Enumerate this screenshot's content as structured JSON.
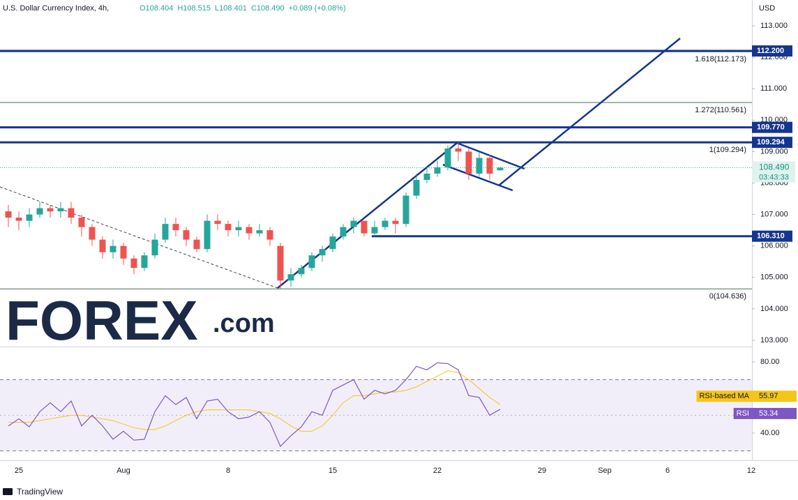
{
  "chart_data": {
    "type": "candlestick",
    "title": "U.S. Dollar Currency Index, 4h,",
    "ohlc_header": [
      "O108.404",
      "H108.515",
      "L108.401",
      "C108.490",
      "+0.089 (+0.08%)"
    ],
    "currency": "USD",
    "categories": [
      null,
      "25",
      null,
      null,
      null,
      null,
      null,
      null,
      null,
      null,
      null,
      "Aug",
      null,
      null,
      null,
      null,
      null,
      null,
      null,
      null,
      null,
      "8",
      null,
      null,
      null,
      null,
      null,
      null,
      null,
      null,
      null,
      "15",
      null,
      null,
      null,
      null,
      null,
      null,
      null,
      null,
      null,
      "22",
      null,
      null,
      null,
      null,
      null,
      null,
      null,
      null,
      null,
      "29",
      null,
      null,
      null,
      null,
      null,
      "Sep",
      null,
      null,
      null,
      null,
      null,
      "6",
      null,
      null,
      null,
      null,
      null,
      null,
      null,
      "12"
    ],
    "open": [
      107.1,
      106.9,
      106.8,
      107.0,
      107.2,
      107.1,
      107.2,
      106.9,
      106.6,
      106.2,
      105.8,
      106.0,
      105.6,
      105.3,
      105.7,
      106.2,
      106.7,
      106.5,
      106.2,
      105.9,
      106.8,
      106.7,
      106.5,
      106.6,
      106.4,
      106.5,
      106.0,
      104.9,
      105.1,
      105.3,
      105.7,
      105.9,
      106.3,
      106.6,
      106.8,
      106.4,
      106.6,
      106.8,
      106.7,
      107.6,
      108.1,
      108.3,
      108.5,
      109.1,
      109.0,
      108.3,
      108.8,
      108.404,
      null,
      null,
      null,
      null,
      null,
      null,
      null,
      null,
      null,
      null,
      null,
      null,
      null,
      null,
      null,
      null,
      null,
      null,
      null,
      null,
      null,
      null,
      null,
      null
    ],
    "high": [
      107.3,
      107.1,
      107.2,
      107.4,
      107.3,
      107.4,
      107.4,
      107.0,
      106.7,
      106.3,
      106.2,
      106.1,
      105.7,
      105.8,
      106.4,
      106.9,
      106.9,
      106.6,
      106.3,
      107.0,
      107.0,
      106.8,
      106.8,
      106.7,
      106.7,
      106.6,
      106.1,
      105.3,
      105.4,
      105.8,
      106.0,
      106.4,
      106.7,
      106.9,
      106.8,
      106.8,
      106.9,
      106.9,
      107.7,
      108.3,
      108.5,
      108.7,
      109.2,
      109.3,
      109.1,
      109.0,
      108.9,
      108.515,
      null,
      null,
      null,
      null,
      null,
      null,
      null,
      null,
      null,
      null,
      null,
      null,
      null,
      null,
      null,
      null,
      null,
      null,
      null,
      null,
      null,
      null,
      null,
      null
    ],
    "low": [
      106.6,
      106.5,
      106.6,
      106.9,
      106.9,
      106.9,
      106.7,
      106.3,
      106.0,
      105.6,
      105.6,
      105.4,
      105.1,
      105.2,
      105.6,
      106.1,
      106.3,
      106.0,
      105.8,
      105.8,
      106.5,
      106.3,
      106.3,
      106.2,
      106.3,
      106.0,
      104.65,
      104.7,
      105.0,
      105.2,
      105.5,
      105.8,
      106.2,
      106.4,
      106.3,
      106.3,
      106.5,
      106.4,
      106.6,
      107.5,
      108.0,
      108.2,
      108.4,
      108.7,
      108.1,
      108.2,
      108.1,
      108.401,
      null,
      null,
      null,
      null,
      null,
      null,
      null,
      null,
      null,
      null,
      null,
      null,
      null,
      null,
      null,
      null,
      null,
      null,
      null,
      null,
      null,
      null,
      null,
      null
    ],
    "close": [
      106.9,
      106.8,
      107.0,
      107.2,
      107.1,
      107.2,
      106.9,
      106.6,
      106.2,
      105.8,
      106.0,
      105.6,
      105.3,
      105.7,
      106.2,
      106.7,
      106.5,
      106.2,
      105.9,
      106.8,
      106.7,
      106.5,
      106.6,
      106.4,
      106.5,
      106.2,
      104.9,
      105.1,
      105.3,
      105.7,
      105.9,
      106.3,
      106.6,
      106.8,
      106.4,
      106.6,
      106.8,
      106.7,
      107.6,
      108.1,
      108.3,
      108.5,
      109.1,
      109.0,
      108.3,
      108.8,
      108.3,
      108.49,
      null,
      null,
      null,
      null,
      null,
      null,
      null,
      null,
      null,
      null,
      null,
      null,
      null,
      null,
      null,
      null,
      null,
      null,
      null,
      null,
      null,
      null,
      null,
      null
    ],
    "up_color": "#26a69a",
    "down_color": "#ef5350",
    "ylim": [
      102.8,
      113.82
    ],
    "yticks": [
      {
        "value": 113,
        "label": "113.000"
      },
      {
        "value": 112,
        "label": "112.000"
      },
      {
        "value": 111,
        "label": "111.000"
      },
      {
        "value": 110,
        "label": "110.000"
      },
      {
        "value": 109,
        "label": "109.000"
      },
      {
        "value": 108,
        "label": "108.000"
      },
      {
        "value": 107,
        "label": "107.000"
      },
      {
        "value": 106,
        "label": "106.000"
      },
      {
        "value": 105,
        "label": "105.000"
      },
      {
        "value": 104,
        "label": "104.000"
      },
      {
        "value": 103,
        "label": "103.000"
      }
    ],
    "levels": [
      {
        "value": 112.2,
        "label": "112.200"
      },
      {
        "value": 109.77,
        "label": "109.770"
      },
      {
        "value": 109.294,
        "label": "109.294"
      },
      {
        "value": 106.31,
        "label": "106.310"
      }
    ],
    "level_color": "#15358f",
    "fib": [
      {
        "value": 112.173,
        "label": "1.618(112.173)"
      },
      {
        "value": 110.561,
        "label": "1.272(110.561)"
      },
      {
        "value": 109.294,
        "label": "1(109.294)"
      },
      {
        "value": 104.636,
        "label": "0(104.636)"
      }
    ],
    "last_price": {
      "value": 108.49,
      "label": "108.490"
    },
    "countdown": "03:43:33",
    "rsi": {
      "ylim": [
        24.7,
        88.2
      ],
      "yticks": [
        {
          "value": 80,
          "label": "80.00"
        },
        {
          "value": 40,
          "label": "40.00"
        }
      ],
      "band": [
        30,
        70
      ],
      "series": [
        {
          "name": "RSI-based MA",
          "color": "#f5c518",
          "values": [
            46,
            46,
            46,
            47,
            48,
            49,
            50,
            50,
            49,
            48,
            47,
            45,
            43,
            42,
            42,
            44,
            47,
            50,
            52,
            53,
            53,
            53,
            53,
            53,
            52,
            51,
            48,
            44,
            41,
            41,
            44,
            50,
            57,
            61,
            61,
            62,
            63,
            63,
            64,
            66,
            69,
            72,
            75,
            74,
            70,
            65,
            60,
            55.97,
            null,
            null,
            null,
            null,
            null,
            null,
            null,
            null,
            null,
            null,
            null,
            null,
            null,
            null,
            null,
            null,
            null,
            null,
            null,
            null,
            null,
            null,
            null,
            null
          ]
        },
        {
          "name": "RSI",
          "color": "#7e57c2",
          "values": [
            44,
            48,
            43.5,
            52,
            57,
            52,
            58,
            44,
            50,
            44,
            36.5,
            41,
            36,
            36.5,
            52,
            61,
            56,
            60,
            48,
            58,
            59,
            52,
            48,
            49,
            52,
            46,
            32.5,
            38.5,
            43.5,
            52,
            50,
            64,
            67,
            70,
            59,
            64,
            62,
            64,
            70,
            77.5,
            75.5,
            79.5,
            79,
            75.5,
            61,
            60,
            50,
            53.34,
            null,
            null,
            null,
            null,
            null,
            null,
            null,
            null,
            null,
            null,
            null,
            null,
            null,
            null,
            null,
            null,
            null,
            null,
            null,
            null,
            null,
            null,
            null,
            null
          ]
        }
      ]
    }
  },
  "brand": {
    "logo": "FOREX",
    "suffix": ".com",
    "footer": "TradingView"
  }
}
